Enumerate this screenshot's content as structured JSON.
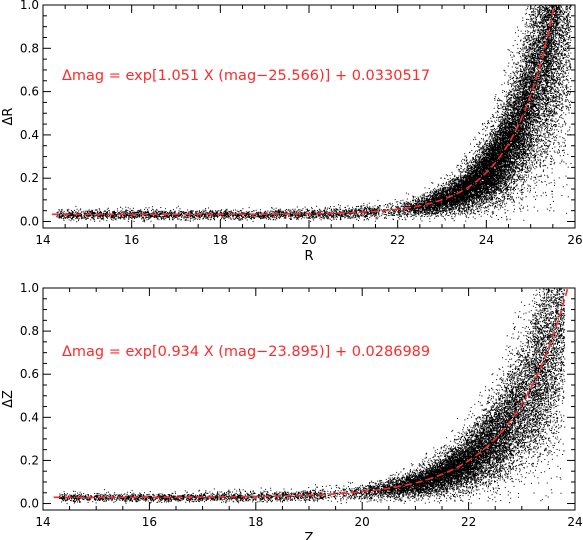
{
  "chart_data": [
    {
      "type": "scatter",
      "xlabel": "R",
      "ylabel": "ΔR",
      "xlim": [
        14,
        26
      ],
      "ylim": [
        -0.03,
        1.0
      ],
      "xticks": [
        "14",
        "16",
        "18",
        "20",
        "22",
        "24",
        "26"
      ],
      "yticks": [
        "0.0",
        "0.2",
        "0.4",
        "0.6",
        "0.8",
        "1.0"
      ],
      "scatter_color": "#000000",
      "fit_color": "#ff2a2a",
      "fit_style": "dashed",
      "fit": {
        "a": 1.051,
        "m0": 25.566,
        "c": 0.0330517
      },
      "annotation": "Δmag = exp[1.051 X (mag−25.566)] + 0.0330517",
      "point_distribution": {
        "mag_min": 14.3,
        "mag_max": 25.9,
        "mag_peak": 24.6
      }
    },
    {
      "type": "scatter",
      "xlabel": "Z",
      "ylabel": "ΔZ",
      "xlim": [
        14,
        24
      ],
      "ylim": [
        -0.03,
        1.0
      ],
      "xticks": [
        "14",
        "16",
        "18",
        "20",
        "22",
        "24"
      ],
      "yticks": [
        "0.0",
        "0.2",
        "0.4",
        "0.6",
        "0.8",
        "1.0"
      ],
      "scatter_color": "#000000",
      "fit_color": "#ff2a2a",
      "fit_style": "dashed",
      "fit": {
        "a": 0.934,
        "m0": 23.895,
        "c": 0.0286989
      },
      "annotation": "Δmag = exp[0.934 X (mag−23.895)] + 0.0286989",
      "point_distribution": {
        "mag_min": 14.3,
        "mag_max": 23.8,
        "mag_peak": 22.3
      }
    }
  ]
}
